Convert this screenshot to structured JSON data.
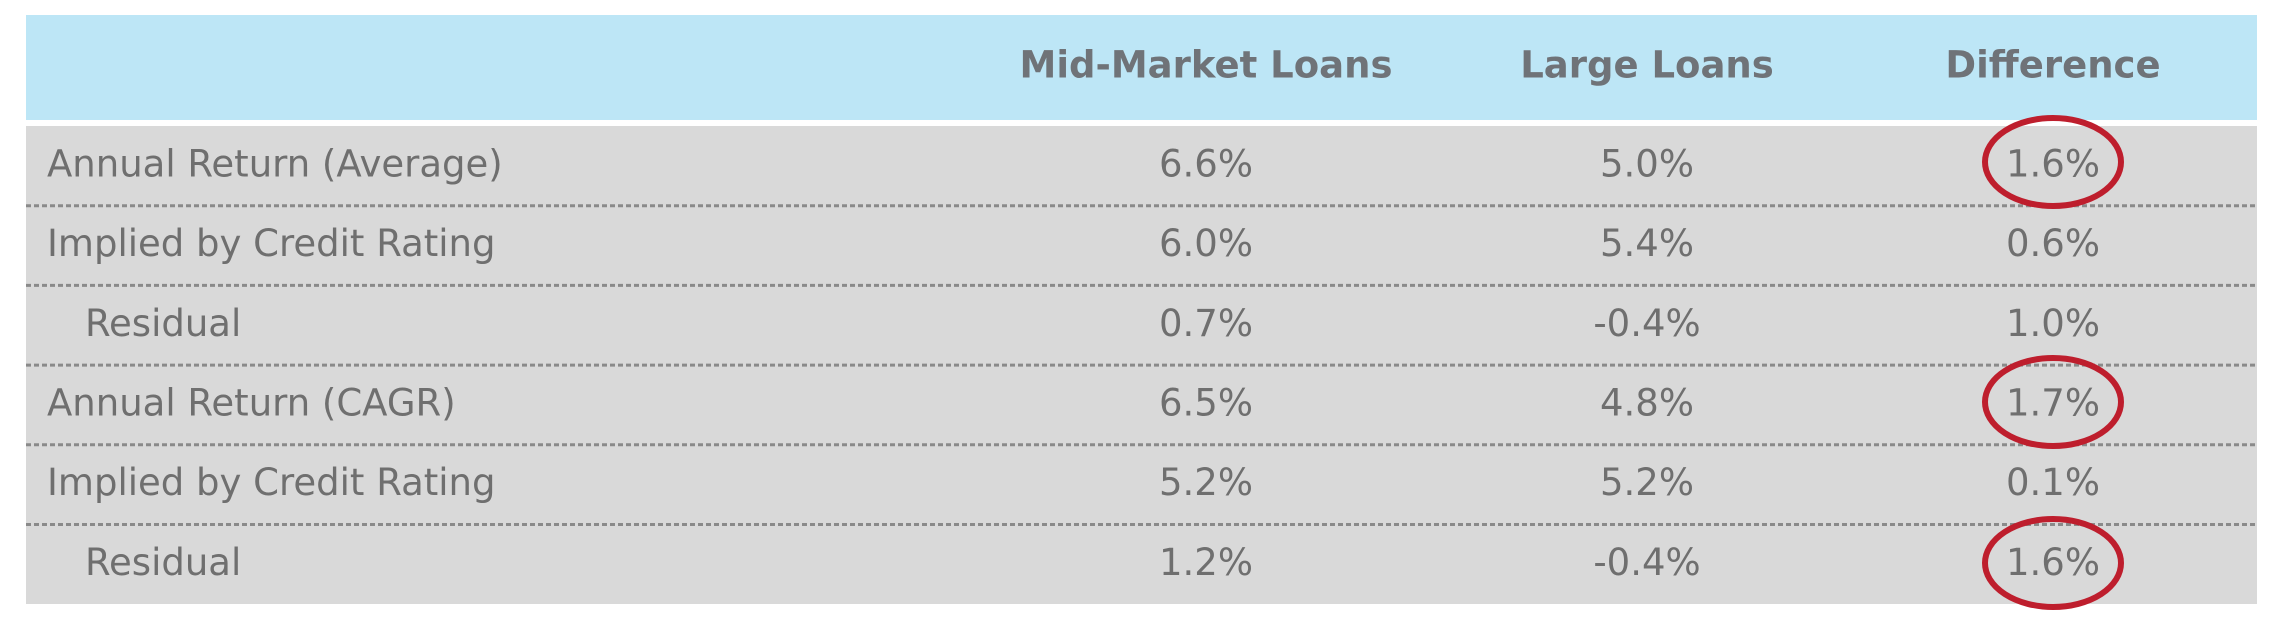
{
  "table": {
    "header": [
      "Mid-Market Loans",
      "Large Loans",
      "Difference"
    ],
    "rows": [
      [
        "Annual Return (Average)",
        "6.6%",
        "5.0%",
        "1.6%"
      ],
      [
        "Implied by Credit Rating",
        "6.0%",
        "5.4%",
        "0.6%"
      ],
      [
        "Residual",
        "0.7%",
        "-0.4%",
        "1.0%"
      ],
      [
        "Annual Return (CAGR)",
        "6.5%",
        "4.8%",
        "1.7%"
      ],
      [
        "Implied by Credit Rating",
        "5.2%",
        "5.2%",
        "0.1%"
      ],
      [
        "Residual",
        "1.2%",
        "-0.4%",
        "1.6%"
      ]
    ]
  }
}
